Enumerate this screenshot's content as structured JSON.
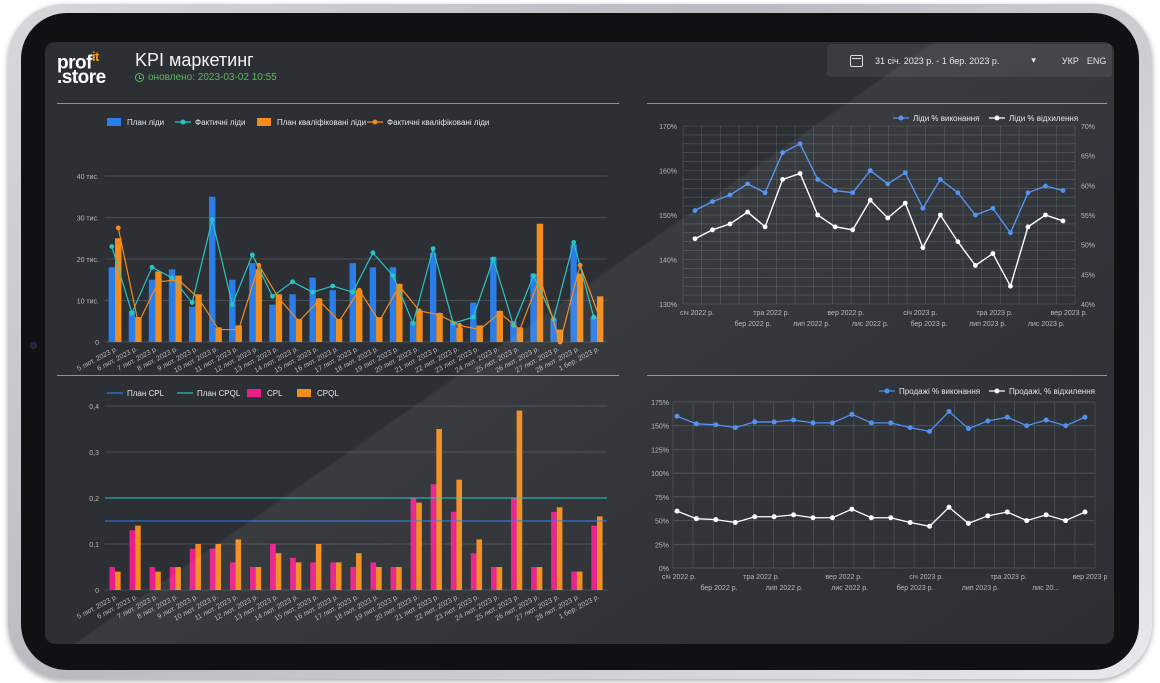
{
  "header": {
    "logo_top": "prof",
    "logo_it": "it",
    "logo_bottom": ".store",
    "title": "KPI маркетинг",
    "updated": "оновлено: 2023-03-02 10:55",
    "date_range": "31 січ. 2023 р. - 1 бер. 2023 р.",
    "dropdown": "▾",
    "lang_ua": "УКР",
    "lang_en": "ENG"
  },
  "colors": {
    "blue": "#2b7de9",
    "orange": "#f28c1b",
    "cyan": "#26c6c6",
    "magenta": "#e91e8c",
    "lightblue": "#4d8ff0",
    "white": "#ffffff",
    "accent": "#e67e22"
  },
  "chart_data": [
    {
      "type": "bar",
      "legend": [
        "План ліди",
        "Фактичні ліди",
        "План кваліфіковані ліди",
        "Фактичні кваліфіковані ліди"
      ],
      "categories": [
        "5 лют. 2023 р.",
        "6 лют. 2023 р.",
        "7 лют. 2023 р.",
        "8 лют. 2023 р.",
        "9 лют. 2023 р.",
        "10 лют. 2023 р.",
        "11 лют. 2023 р.",
        "12 лют. 2023 р.",
        "13 лют. 2023 р.",
        "14 лют. 2023 р.",
        "15 лют. 2023 р.",
        "16 лют. 2023 р.",
        "17 лют. 2023 р.",
        "18 лют. 2023 р.",
        "19 лют. 2023 р.",
        "20 лют. 2023 р.",
        "21 лют. 2023 р.",
        "22 лют. 2023 р.",
        "23 лют. 2023 р.",
        "24 лют. 2023 р.",
        "25 лют. 2023 р.",
        "26 лют. 2023 р.",
        "27 лют. 2023 р.",
        "28 лют. 2023 р.",
        "1 бер. 2023 р."
      ],
      "yticks": [
        "0",
        "10 тис.",
        "20 тис.",
        "30 тис.",
        "40 тис."
      ],
      "ylim": [
        0,
        40000
      ],
      "series": [
        {
          "name": "План ліди",
          "kind": "bar",
          "values": [
            18000,
            7500,
            15000,
            17500,
            8500,
            35000,
            15000,
            19000,
            9000,
            11500,
            15500,
            12500,
            19000,
            18000,
            18000,
            5000,
            21500,
            5000,
            9500,
            20500,
            5000,
            16500,
            5500,
            23500,
            6000
          ]
        },
        {
          "name": "План кваліфіковані ліди",
          "kind": "bar",
          "values": [
            25000,
            6000,
            17000,
            16000,
            11500,
            3500,
            4000,
            17500,
            11500,
            5500,
            10500,
            5500,
            12500,
            6000,
            14000,
            7500,
            7000,
            3500,
            4000,
            7500,
            3500,
            28500,
            3000,
            16500,
            11000
          ]
        },
        {
          "name": "Фактичні ліди",
          "kind": "line",
          "values": [
            23000,
            7000,
            18000,
            15500,
            9500,
            29500,
            9000,
            21000,
            11000,
            14500,
            12000,
            13500,
            12000,
            21500,
            16000,
            4500,
            22500,
            4500,
            6000,
            20000,
            4000,
            16000,
            5500,
            24000,
            6000
          ]
        },
        {
          "name": "Фактичні кваліфіковані ліди",
          "kind": "line",
          "values": [
            27500,
            4500,
            14500,
            15000,
            10500,
            3000,
            3000,
            18500,
            10500,
            5000,
            10000,
            5000,
            12500,
            5000,
            13500,
            7500,
            6500,
            4000,
            3000,
            7000,
            3000,
            15500,
            0,
            18500,
            5500
          ]
        }
      ]
    },
    {
      "type": "line",
      "legend": [
        "Ліди % виконання",
        "Ліди % відхилення"
      ],
      "x_labels_top": [
        "січ 2022 р.",
        "тра 2022 р.",
        "вер 2022 р.",
        "січ 2023 р.",
        "тра 2023 р.",
        "вер 2023 р."
      ],
      "x_labels_bottom": [
        "бер 2022 р.",
        "лип 2022 р.",
        "лис 2022 р.",
        "бер 2023 р.",
        "лип 2023 р.",
        "лис 2023 р."
      ],
      "yticks_left": [
        "130%",
        "140%",
        "150%",
        "160%",
        "170%"
      ],
      "yticks_right": [
        "40%",
        "45%",
        "50%",
        "55%",
        "60%",
        "65%",
        "70%"
      ],
      "ylim_left": [
        130,
        170
      ],
      "ylim_right": [
        40,
        70
      ],
      "series": [
        {
          "name": "Ліди % виконання",
          "axis": "left",
          "values": [
            151,
            153,
            154.5,
            157,
            155,
            164,
            166,
            158,
            155.5,
            155,
            160,
            157,
            159.5,
            151.5,
            158,
            155,
            150,
            151.5,
            146,
            155,
            156.5,
            155.5
          ]
        },
        {
          "name": "Ліди % відхилення",
          "axis": "right",
          "values": [
            51,
            52.5,
            53.5,
            55.5,
            53,
            61,
            62,
            55,
            53,
            52.5,
            57.5,
            54.5,
            57,
            49.5,
            55,
            50.5,
            46.5,
            48.5,
            43,
            53,
            55,
            54
          ]
        }
      ]
    },
    {
      "type": "bar",
      "legend": [
        "План CPL",
        "План CPQL",
        "CPL",
        "CPQL"
      ],
      "categories": [
        "5 лют. 2023 р.",
        "6 лют. 2023 р.",
        "7 лют. 2023 р.",
        "8 лют. 2023 р.",
        "9 лют. 2023 р.",
        "10 лют. 2023 р.",
        "11 лют. 2023 р.",
        "12 лют. 2023 р.",
        "13 лют. 2023 р.",
        "14 лют. 2023 р.",
        "15 лют. 2023 р.",
        "16 лют. 2023 р.",
        "17 лют. 2023 р.",
        "18 лют. 2023 р.",
        "19 лют. 2023 р.",
        "20 лют. 2023 р.",
        "21 лют. 2023 р.",
        "22 лют. 2023 р.",
        "23 лют. 2023 р.",
        "24 лют. 2023 р.",
        "25 лют. 2023 р.",
        "26 лют. 2023 р.",
        "27 лют. 2023 р.",
        "28 лют. 2023 р.",
        "1 бер. 2023 р."
      ],
      "yticks": [
        "0",
        "0,1",
        "0,2",
        "0,3",
        "0,4"
      ],
      "ylim": [
        0,
        0.4
      ],
      "plan_cpl": 0.15,
      "plan_cpql": 0.2,
      "series": [
        {
          "name": "CPL",
          "values": [
            0.05,
            0.13,
            0.05,
            0.05,
            0.09,
            0.09,
            0.06,
            0.05,
            0.1,
            0.07,
            0.06,
            0.06,
            0.05,
            0.06,
            0.05,
            0.2,
            0.23,
            0.17,
            0.08,
            0.05,
            0.2,
            0.05,
            0.17,
            0.04,
            0.14
          ]
        },
        {
          "name": "CPQL",
          "values": [
            0.04,
            0.14,
            0.04,
            0.05,
            0.1,
            0.1,
            0.11,
            0.05,
            0.08,
            0.06,
            0.1,
            0.06,
            0.08,
            0.05,
            0.05,
            0.19,
            0.35,
            0.24,
            0.11,
            0.05,
            0.39,
            0.05,
            0.18,
            0.04,
            0.16
          ]
        }
      ]
    },
    {
      "type": "line",
      "legend": [
        "Продажі % виконання",
        "Продажі, % відхилення"
      ],
      "x_labels_top": [
        "січ 2022 р.",
        "тра 2022 р.",
        "вер 2022 р.",
        "січ 2023 р.",
        "тра 2023 р.",
        "вер 2023 р."
      ],
      "x_labels_bottom": [
        "бер 2022 р.",
        "лип 2022 р.",
        "лис 2022 р.",
        "бер 2023 р.",
        "лип 2023 р.",
        "лис 20..."
      ],
      "yticks": [
        "0%",
        "25%",
        "50%",
        "75%",
        "100%",
        "125%",
        "150%",
        "175%"
      ],
      "ylim": [
        0,
        175
      ],
      "series": [
        {
          "name": "Продажі % виконання",
          "values": [
            160,
            152,
            151,
            148,
            154,
            154,
            156,
            153,
            153,
            162,
            153,
            153,
            148,
            144,
            165,
            147,
            155,
            159,
            150,
            156,
            150,
            159
          ]
        },
        {
          "name": "Продажі, % відхилення",
          "values": [
            60,
            52,
            51,
            48,
            54,
            54,
            56,
            53,
            53,
            62,
            53,
            53,
            48,
            44,
            64,
            47,
            55,
            59,
            50,
            56,
            50,
            59
          ]
        }
      ]
    }
  ]
}
